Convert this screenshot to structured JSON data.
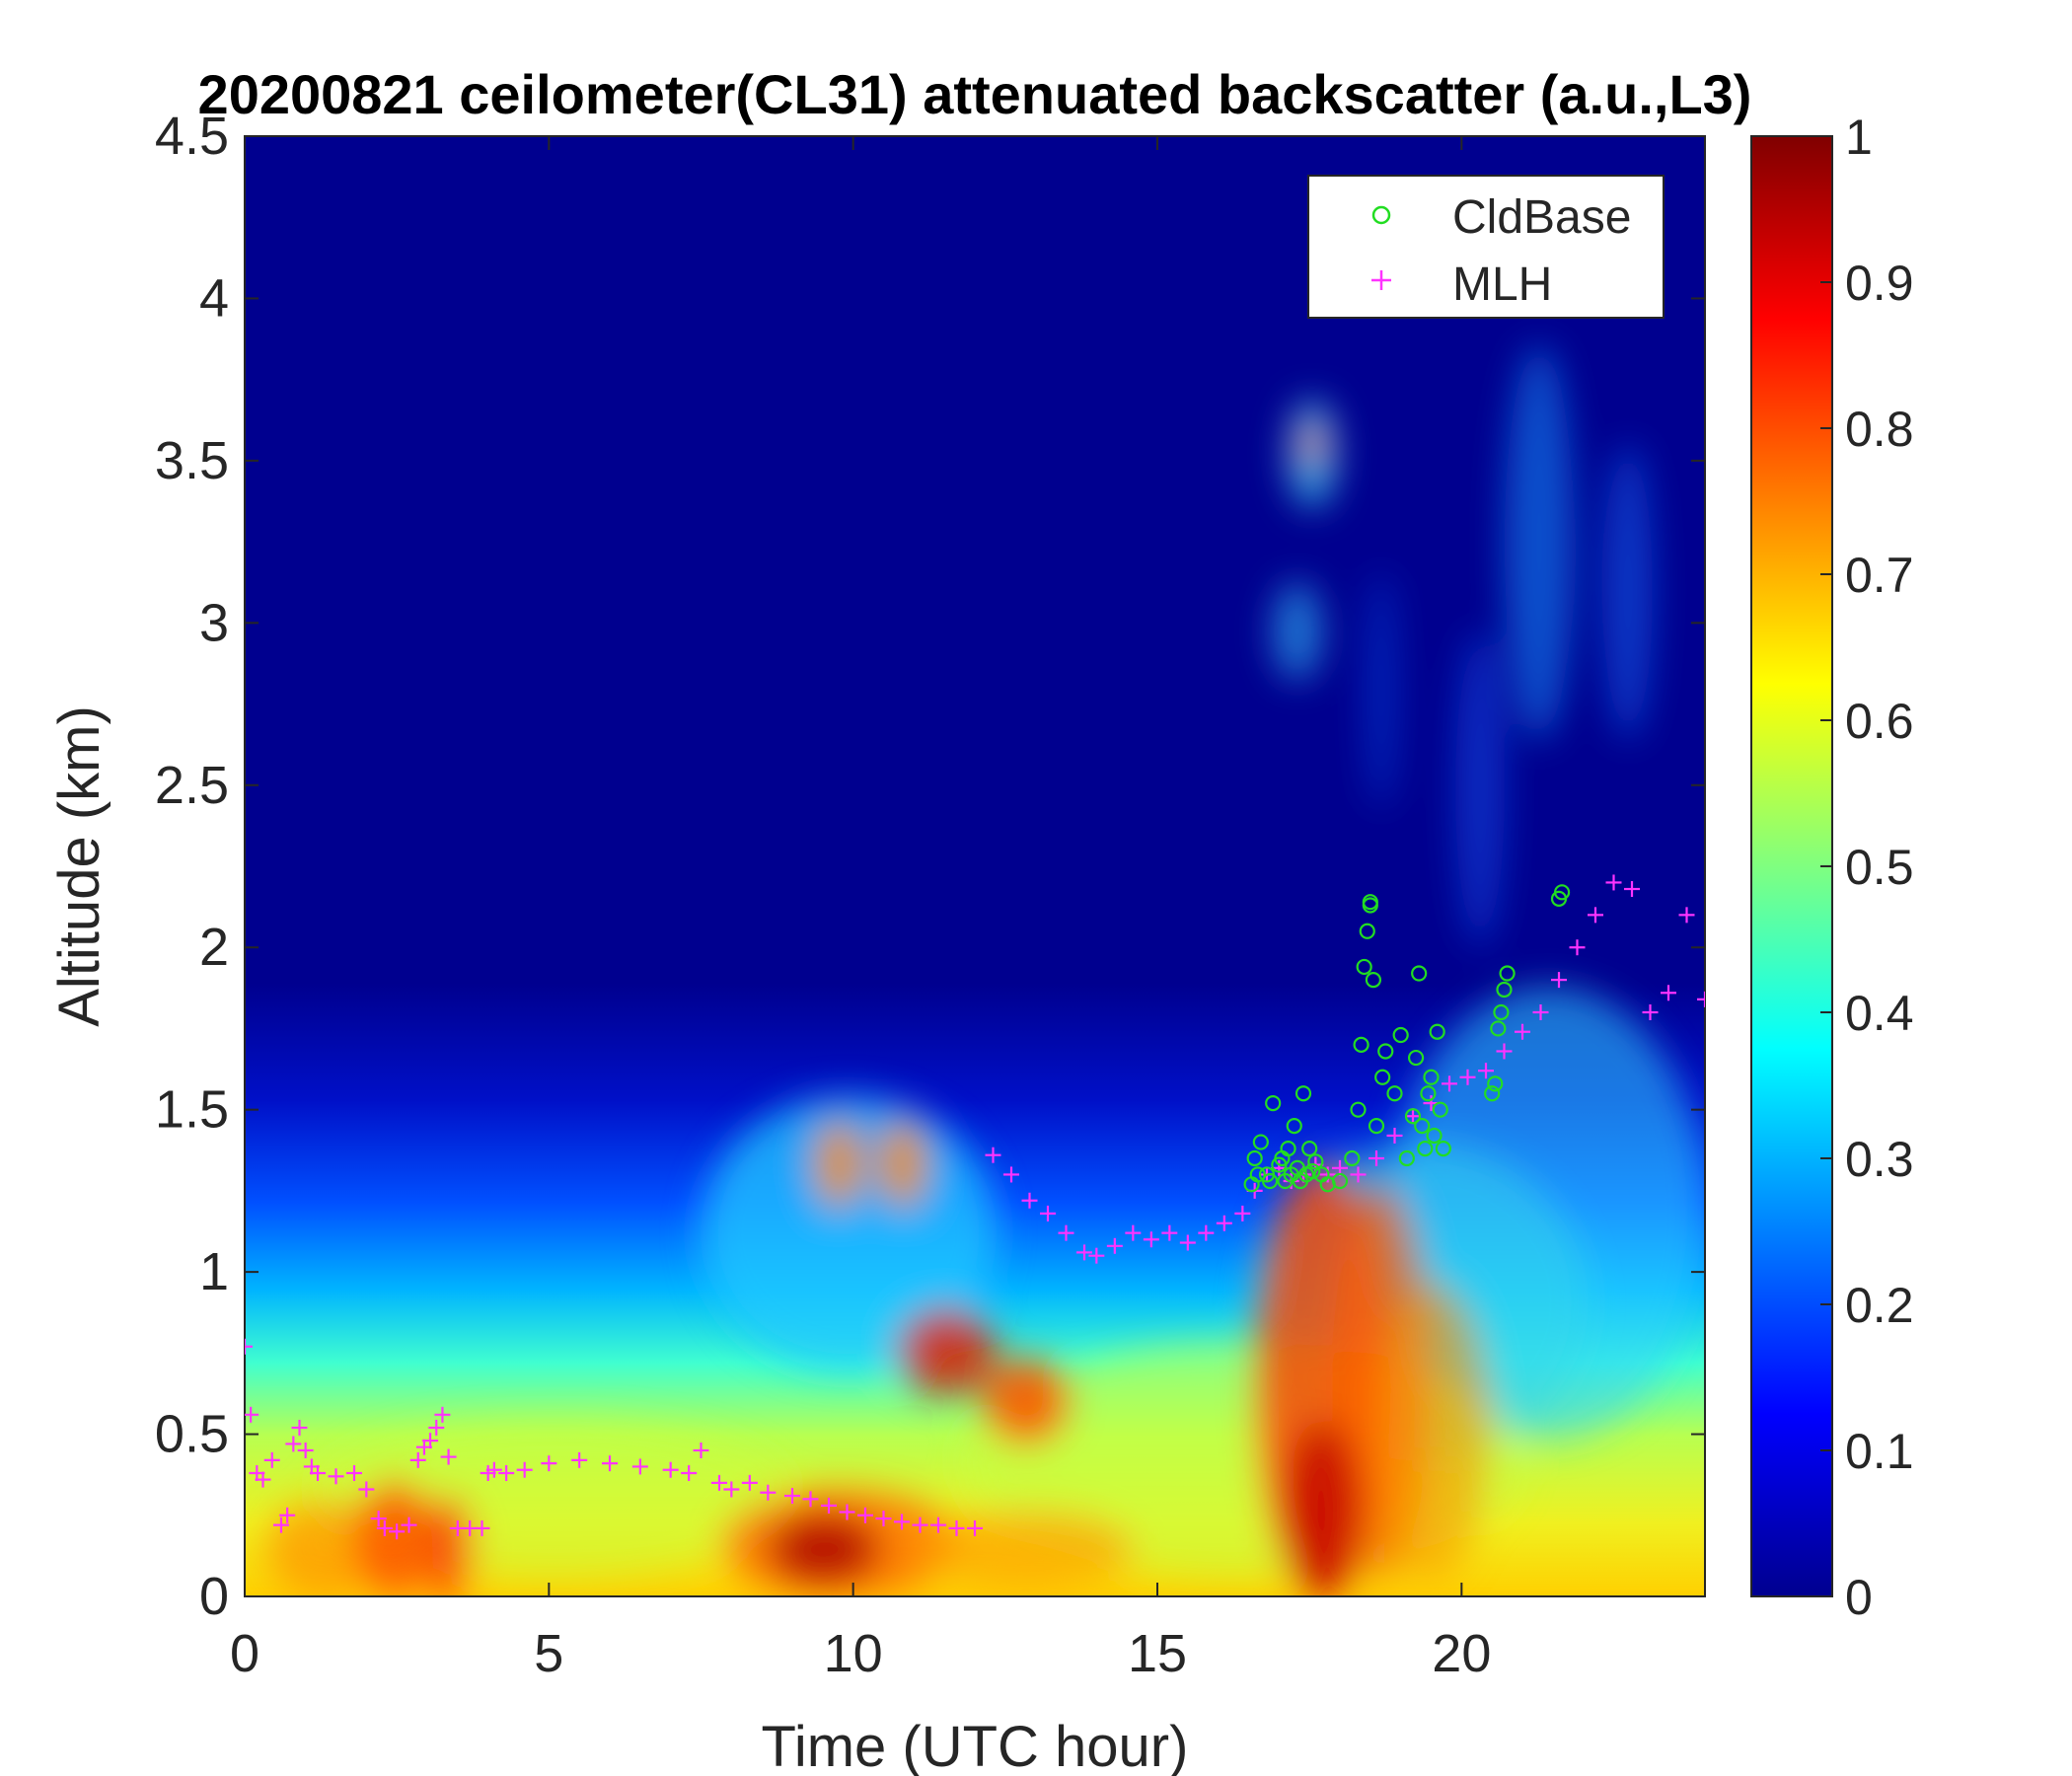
{
  "chart_data": {
    "type": "heatmap",
    "title": "20200821 ceilometer(CL31) attenuated backscatter (a.u.,L3)",
    "xlabel": "Time (UTC hour)",
    "ylabel": "Altitude (km)",
    "xlim": [
      0,
      24
    ],
    "ylim": [
      0,
      4.5
    ],
    "xticks": [
      0,
      5,
      10,
      15,
      20
    ],
    "yticks": [
      0,
      0.5,
      1,
      1.5,
      2,
      2.5,
      3,
      3.5,
      4,
      4.5
    ],
    "colorbar": {
      "range": [
        0,
        1
      ],
      "ticks": [
        0,
        0.1,
        0.2,
        0.3,
        0.4,
        0.5,
        0.6,
        0.7,
        0.8,
        0.9,
        1
      ],
      "colormap": "jet"
    },
    "legend": {
      "position": "top-right",
      "entries": [
        {
          "label": "CldBase",
          "marker": "circle",
          "color": "#22dd22"
        },
        {
          "label": "MLH",
          "marker": "plus",
          "color": "#ff33ff"
        }
      ]
    },
    "series": [
      {
        "name": "MLH",
        "marker": "plus",
        "color": "#ff33ff",
        "x": [
          0.0,
          0.1,
          0.2,
          0.3,
          0.45,
          0.6,
          0.7,
          0.8,
          0.9,
          1.0,
          1.1,
          1.2,
          1.5,
          1.8,
          2.0,
          2.2,
          2.3,
          2.5,
          2.7,
          2.85,
          2.95,
          3.05,
          3.15,
          3.25,
          3.35,
          3.5,
          3.7,
          3.9,
          4.0,
          4.1,
          4.3,
          4.6,
          5.0,
          5.5,
          6.0,
          6.5,
          7.0,
          7.3,
          7.5,
          7.8,
          8.0,
          8.3,
          8.6,
          9.0,
          9.3,
          9.6,
          9.9,
          10.2,
          10.5,
          10.8,
          11.1,
          11.4,
          11.7,
          12.0,
          12.3,
          12.6,
          12.9,
          13.2,
          13.5,
          13.8,
          14.0,
          14.3,
          14.6,
          14.9,
          15.2,
          15.5,
          15.8,
          16.1,
          16.4,
          16.6,
          16.8,
          17.0,
          17.2,
          17.4,
          17.6,
          17.8,
          18.0,
          18.3,
          18.6,
          18.9,
          19.2,
          19.5,
          19.8,
          20.1,
          20.4,
          20.7,
          21.0,
          21.3,
          21.6,
          21.9,
          22.2,
          22.5,
          22.8,
          23.1,
          23.4,
          23.7,
          24.0
        ],
        "y": [
          0.77,
          0.56,
          0.38,
          0.36,
          0.42,
          0.22,
          0.25,
          0.47,
          0.52,
          0.45,
          0.4,
          0.38,
          0.37,
          0.38,
          0.33,
          0.24,
          0.21,
          0.2,
          0.22,
          0.42,
          0.46,
          0.48,
          0.52,
          0.56,
          0.43,
          0.21,
          0.21,
          0.21,
          0.38,
          0.39,
          0.38,
          0.39,
          0.41,
          0.42,
          0.41,
          0.4,
          0.39,
          0.38,
          0.45,
          0.35,
          0.33,
          0.35,
          0.32,
          0.31,
          0.3,
          0.28,
          0.26,
          0.25,
          0.24,
          0.23,
          0.22,
          0.22,
          0.21,
          0.21,
          1.36,
          1.3,
          1.22,
          1.18,
          1.12,
          1.06,
          1.05,
          1.08,
          1.12,
          1.1,
          1.12,
          1.09,
          1.12,
          1.15,
          1.18,
          1.25,
          1.3,
          1.32,
          1.28,
          1.3,
          1.33,
          1.3,
          1.32,
          1.3,
          1.35,
          1.42,
          1.48,
          1.52,
          1.58,
          1.6,
          1.62,
          1.68,
          1.74,
          1.8,
          1.9,
          2.0,
          2.1,
          2.2,
          2.18,
          1.8,
          1.86,
          2.1,
          1.84
        ]
      },
      {
        "name": "CldBase",
        "marker": "circle",
        "color": "#22dd22",
        "x": [
          16.55,
          16.6,
          16.65,
          16.7,
          16.8,
          16.85,
          16.9,
          17.0,
          17.05,
          17.1,
          17.15,
          17.2,
          17.25,
          17.3,
          17.35,
          17.4,
          17.45,
          17.5,
          17.55,
          17.6,
          17.7,
          17.8,
          18.0,
          18.2,
          18.3,
          18.35,
          18.4,
          18.45,
          18.5,
          18.5,
          18.55,
          18.6,
          18.7,
          18.75,
          18.9,
          19.0,
          19.1,
          19.2,
          19.25,
          19.3,
          19.35,
          19.4,
          19.45,
          19.5,
          19.55,
          19.6,
          19.65,
          19.7,
          20.5,
          20.55,
          20.6,
          20.65,
          20.7,
          20.75,
          21.6,
          21.65
        ],
        "y": [
          1.27,
          1.35,
          1.3,
          1.4,
          1.3,
          1.28,
          1.52,
          1.33,
          1.35,
          1.28,
          1.38,
          1.3,
          1.45,
          1.32,
          1.28,
          1.55,
          1.3,
          1.38,
          1.31,
          1.34,
          1.3,
          1.27,
          1.28,
          1.35,
          1.5,
          1.7,
          1.94,
          2.05,
          2.13,
          2.14,
          1.9,
          1.45,
          1.6,
          1.68,
          1.55,
          1.73,
          1.35,
          1.48,
          1.66,
          1.92,
          1.45,
          1.38,
          1.55,
          1.6,
          1.42,
          1.74,
          1.5,
          1.38,
          1.55,
          1.58,
          1.75,
          1.8,
          1.87,
          1.92,
          2.15,
          2.17
        ]
      }
    ]
  }
}
